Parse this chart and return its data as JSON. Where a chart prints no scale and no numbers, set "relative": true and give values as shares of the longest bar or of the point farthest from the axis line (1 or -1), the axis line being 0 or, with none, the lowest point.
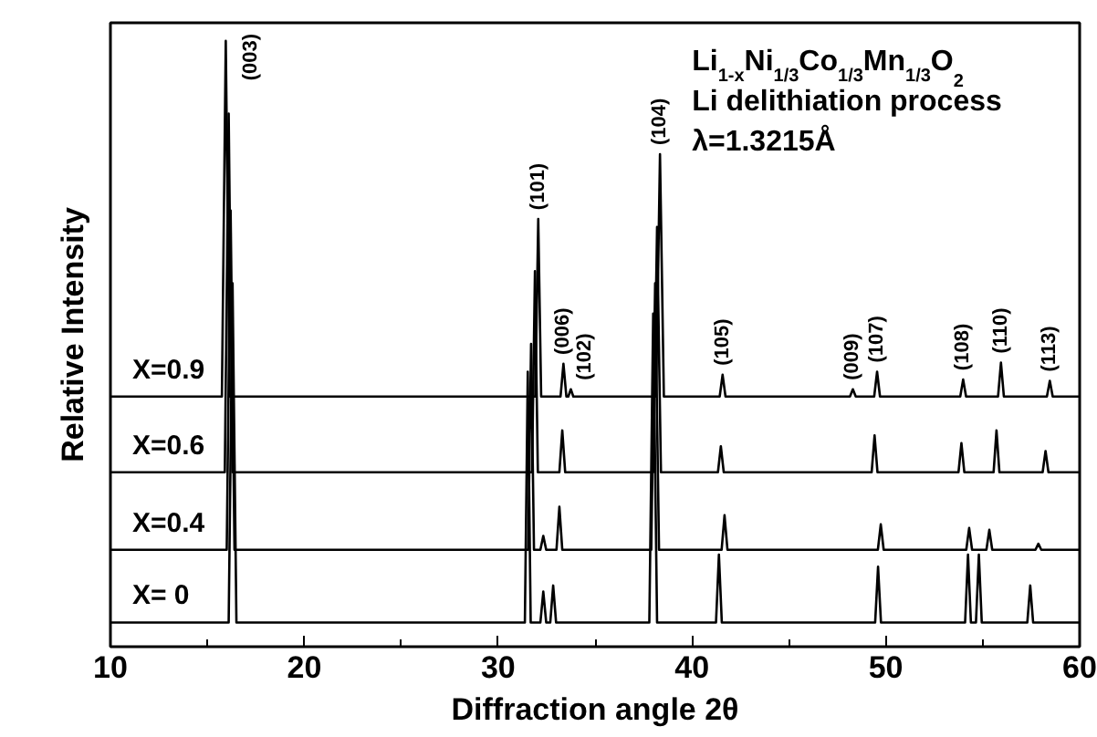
{
  "chart_data": {
    "type": "line",
    "relative": true,
    "xlabel": "Diffraction angle 2θ",
    "ylabel": "Relative Intensity",
    "xlim": [
      10,
      60
    ],
    "xticks": [
      10,
      20,
      30,
      40,
      50,
      60
    ],
    "grid": false,
    "marker": "none",
    "line_style": "solid",
    "annotations": [
      "Li$_{1-x}$Ni$_{1/3}$Co$_{1/3}$Mn$_{1/3}$O$_{2}$",
      "Li delithiation process",
      "λ=1.3215Å",
      {
        "text": "(003)",
        "x": 15.95,
        "y": 1.0
      },
      {
        "text": "(101)",
        "x": 32.07,
        "y": 0.706
      },
      {
        "text": "(006)",
        "x": 33.37,
        "y": 0.467
      },
      {
        "text": "(102)",
        "x": 33.75,
        "y": 0.425
      },
      {
        "text": "(104)",
        "x": 38.35,
        "y": 0.813
      },
      {
        "text": "(105)",
        "x": 41.58,
        "y": 0.449
      },
      {
        "text": "(009)",
        "x": 48.3,
        "y": 0.425
      },
      {
        "text": "(107)",
        "x": 49.55,
        "y": 0.454
      },
      {
        "text": "(108)",
        "x": 53.99,
        "y": 0.441
      },
      {
        "text": "(110)",
        "x": 55.94,
        "y": 0.469
      },
      {
        "text": "(113)",
        "x": 58.46,
        "y": 0.439
      }
    ],
    "series": [
      {
        "name": "X=0.9",
        "color": "#000000",
        "x": [
          10,
          15.75,
          15.95,
          16.15,
          31.92,
          32.07,
          32.22,
          33.22,
          33.37,
          33.52,
          33.62,
          33.75,
          33.88,
          38.15,
          38.35,
          38.55,
          41.43,
          41.58,
          41.73,
          48.15,
          48.3,
          48.45,
          49.4,
          49.55,
          49.7,
          53.84,
          53.99,
          54.14,
          55.79,
          55.94,
          56.09,
          58.31,
          58.46,
          58.61,
          60
        ],
        "values": [
          0.413,
          0.413,
          1.0,
          0.413,
          0.413,
          0.706,
          0.413,
          0.413,
          0.467,
          0.413,
          0.413,
          0.425,
          0.413,
          0.413,
          0.813,
          0.413,
          0.413,
          0.449,
          0.413,
          0.413,
          0.425,
          0.413,
          0.413,
          0.454,
          0.413,
          0.413,
          0.441,
          0.413,
          0.413,
          0.469,
          0.413,
          0.413,
          0.439,
          0.413,
          0.413
        ]
      },
      {
        "name": "X=0.6",
        "color": "#000000",
        "x": [
          10,
          15.9,
          16.1,
          16.3,
          31.75,
          31.9,
          32.05,
          33.16,
          33.31,
          33.46,
          38.0,
          38.2,
          38.4,
          41.34,
          41.49,
          41.64,
          49.27,
          49.42,
          49.57,
          53.75,
          53.9,
          54.05,
          55.56,
          55.71,
          55.86,
          58.09,
          58.24,
          58.39,
          60
        ],
        "values": [
          0.288,
          0.288,
          0.88,
          0.288,
          0.288,
          0.62,
          0.288,
          0.288,
          0.357,
          0.288,
          0.288,
          0.693,
          0.288,
          0.288,
          0.331,
          0.288,
          0.288,
          0.349,
          0.288,
          0.288,
          0.336,
          0.288,
          0.288,
          0.357,
          0.288,
          0.288,
          0.323,
          0.288,
          0.288
        ]
      },
      {
        "name": "X=0.4",
        "color": "#000000",
        "x": [
          10,
          16.0,
          16.2,
          16.4,
          31.55,
          31.7,
          31.85,
          32.18,
          32.33,
          32.48,
          33.01,
          33.16,
          33.31,
          37.9,
          38.1,
          38.3,
          41.53,
          41.68,
          41.83,
          49.59,
          49.74,
          49.89,
          54.15,
          54.3,
          54.45,
          55.19,
          55.34,
          55.49,
          57.72,
          57.87,
          58.02,
          60
        ],
        "values": [
          0.16,
          0.16,
          0.72,
          0.16,
          0.16,
          0.5,
          0.16,
          0.16,
          0.183,
          0.16,
          0.16,
          0.231,
          0.16,
          0.16,
          0.6,
          0.16,
          0.16,
          0.217,
          0.16,
          0.16,
          0.202,
          0.16,
          0.16,
          0.196,
          0.16,
          0.16,
          0.193,
          0.16,
          0.16,
          0.17,
          0.16,
          0.16
        ]
      },
      {
        "name": "X= 0",
        "color": "#000000",
        "x": [
          10,
          16.1,
          16.3,
          16.5,
          31.38,
          31.53,
          31.68,
          32.18,
          32.33,
          32.48,
          32.69,
          32.84,
          32.99,
          37.8,
          38.0,
          38.2,
          41.24,
          41.39,
          41.54,
          49.45,
          49.6,
          49.75,
          54.09,
          54.24,
          54.39,
          54.65,
          54.8,
          54.95,
          57.3,
          57.45,
          57.6,
          60
        ],
        "values": [
          0.04,
          0.04,
          0.6,
          0.04,
          0.04,
          0.454,
          0.04,
          0.04,
          0.091,
          0.04,
          0.04,
          0.101,
          0.04,
          0.04,
          0.55,
          0.04,
          0.04,
          0.152,
          0.04,
          0.04,
          0.132,
          0.04,
          0.04,
          0.152,
          0.04,
          0.04,
          0.152,
          0.04,
          0.04,
          0.101,
          0.04,
          0.04
        ]
      }
    ]
  }
}
